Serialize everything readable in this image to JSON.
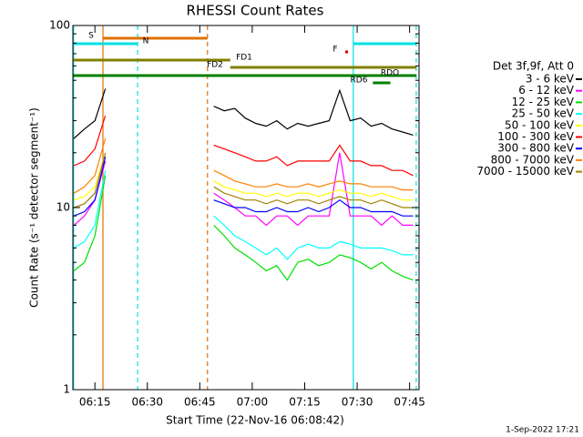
{
  "chart_data": {
    "type": "line",
    "title": "RHESSI Count Rates",
    "x_label": "Start Time (22-Nov-16 06:08:42)",
    "y_label": "Count Rate (s⁻¹ detector segment⁻¹)",
    "footer": "1-Sep-2022 17:21",
    "legend_title": "Det 3f,9f, Att 0",
    "log_y": true,
    "xlim": [
      368.7,
      467.7
    ],
    "xticks": [
      {
        "value": 375,
        "label": "06:15"
      },
      {
        "value": 390,
        "label": "06:30"
      },
      {
        "value": 405,
        "label": "06:45"
      },
      {
        "value": 420,
        "label": "07:00"
      },
      {
        "value": 435,
        "label": "07:15"
      },
      {
        "value": 450,
        "label": "07:30"
      },
      {
        "value": 465,
        "label": "07:45"
      }
    ],
    "ylim": [
      1,
      100
    ],
    "yticks": [
      1,
      10,
      100
    ],
    "minor_yticks": [
      2,
      3,
      4,
      5,
      6,
      7,
      8,
      9,
      20,
      30,
      40,
      50,
      60,
      70,
      80,
      90
    ],
    "x": [
      369,
      372,
      375,
      378,
      393,
      409,
      412,
      415,
      418,
      421,
      424,
      427,
      430,
      433,
      436,
      439,
      442,
      445,
      448,
      451,
      454,
      457,
      460,
      463,
      466
    ],
    "series": [
      {
        "name": "3 - 6 keV",
        "color": "#000000",
        "values": [
          24,
          27,
          30,
          45,
          null,
          36,
          34,
          35,
          31,
          29,
          28,
          30,
          27,
          29,
          28,
          29,
          30,
          44,
          30,
          31,
          28,
          29,
          27,
          26,
          25
        ]
      },
      {
        "name": "6 - 12 keV",
        "color": "#ff00ff",
        "values": [
          8,
          9,
          11,
          18,
          null,
          12,
          11,
          10,
          9,
          9,
          8,
          9,
          9,
          8,
          9,
          9,
          9,
          20,
          9,
          9,
          9,
          8,
          9,
          8,
          8
        ]
      },
      {
        "name": "12 - 25 keV",
        "color": "#00e000",
        "values": [
          4.5,
          5,
          7,
          15,
          null,
          8,
          7,
          6,
          5.5,
          5,
          4.5,
          4.8,
          4,
          5,
          5.2,
          4.8,
          5,
          5.5,
          5.3,
          5,
          4.6,
          5,
          4.5,
          4.2,
          4
        ]
      },
      {
        "name": "25 - 50 keV",
        "color": "#00ffff",
        "values": [
          6,
          6.5,
          8,
          16,
          null,
          9,
          8,
          7,
          6.5,
          6,
          5.5,
          6,
          5.2,
          6,
          6.3,
          6,
          6,
          6.5,
          6.3,
          6,
          6,
          6,
          5.8,
          5.5,
          5.5
        ]
      },
      {
        "name": "50 - 100 keV",
        "color": "#ffff00",
        "values": [
          11,
          11.5,
          13,
          20,
          null,
          14,
          13,
          12.5,
          12,
          12,
          11.5,
          12,
          11.5,
          12,
          12,
          11.5,
          12,
          12.5,
          12,
          12,
          11.5,
          12,
          11.5,
          11,
          11
        ]
      },
      {
        "name": "100 - 300 keV",
        "color": "#ff0000",
        "values": [
          17,
          18,
          21,
          32,
          null,
          22,
          21,
          20,
          19,
          18,
          18,
          19,
          17,
          18,
          18,
          18,
          18,
          22,
          18,
          18,
          17,
          17,
          16,
          16,
          15
        ]
      },
      {
        "name": "300 - 800 keV",
        "color": "#0000ff",
        "values": [
          9,
          9.5,
          11,
          19,
          null,
          11,
          10.5,
          10,
          10,
          9.5,
          9.5,
          10,
          9.5,
          9.5,
          10,
          9.5,
          10,
          11,
          10,
          10,
          9.5,
          9.5,
          9.5,
          9,
          9
        ]
      },
      {
        "name": "800 - 7000 keV",
        "color": "#ff8000",
        "values": [
          12,
          13,
          15,
          24,
          null,
          16,
          15,
          14,
          13.5,
          13,
          13,
          13.5,
          13,
          13,
          13.5,
          13,
          13.5,
          14,
          13.5,
          13.5,
          13,
          13,
          13,
          12.5,
          12.5
        ]
      },
      {
        "name": "7000 - 15000 keV",
        "color": "#a08000",
        "values": [
          10,
          10.5,
          12,
          20,
          null,
          13,
          12,
          11.5,
          11,
          11,
          10.5,
          11,
          10.5,
          11,
          11,
          10.5,
          11,
          11.5,
          11,
          11,
          10.5,
          11,
          10.5,
          10,
          10
        ]
      }
    ],
    "flags": [
      {
        "label": "S",
        "color": "#e07000",
        "intervals": [
          [
            377.3,
            407.2
          ]
        ]
      },
      {
        "label": "N",
        "color": "#00e0e0",
        "intervals": [
          [
            368.7,
            387.2
          ],
          [
            448.9,
            466.9
          ]
        ]
      },
      {
        "label": "F",
        "color": "#d00000",
        "intervals": [
          [
            446.6,
            447.4
          ]
        ]
      },
      {
        "label": "FD1",
        "color": "#808000",
        "intervals": [
          [
            368.7,
            413.7
          ]
        ]
      },
      {
        "label": "FD2",
        "color": "#808000",
        "intervals": [
          [
            413.7,
            466.9
          ]
        ]
      },
      {
        "label": "RDO",
        "color": "#008000",
        "intervals": [
          [
            368.7,
            466.9
          ]
        ]
      },
      {
        "label": "RD6",
        "color": "#008000",
        "intervals": [
          [
            454.5,
            459.5
          ]
        ]
      }
    ],
    "markers": [
      {
        "x": 368.9,
        "color": "#00e0e0",
        "dashed": false
      },
      {
        "x": 387.2,
        "color": "#00e0e0",
        "dashed": true
      },
      {
        "x": 448.9,
        "color": "#00e0e0",
        "dashed": false
      },
      {
        "x": 466.9,
        "color": "#00e0e0",
        "dashed": true
      },
      {
        "x": 377.3,
        "color": "#e07000",
        "dashed": false
      },
      {
        "x": 407.2,
        "color": "#e07000",
        "dashed": true
      }
    ]
  }
}
